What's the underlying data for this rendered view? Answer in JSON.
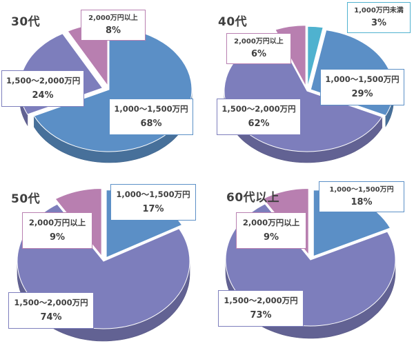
{
  "colors": {
    "c_1000_1500": "#5b8fc6",
    "c_1500_2000": "#7d7ebc",
    "c_over_2000": "#b87fb0",
    "c_under_1000": "#4fb2cf"
  },
  "chart_data": [
    {
      "type": "pie",
      "title": "30代",
      "slices": [
        {
          "category": "1,000～1,500万円",
          "value": 68,
          "label": "68%"
        },
        {
          "category": "1,500～2,000万円",
          "value": 24,
          "label": "24%"
        },
        {
          "category": "2,000万円以上",
          "value": 8,
          "label": "8%"
        }
      ]
    },
    {
      "type": "pie",
      "title": "40代",
      "slices": [
        {
          "category": "1,000万円未満",
          "value": 3,
          "label": "3%"
        },
        {
          "category": "1,000～1,500万円",
          "value": 29,
          "label": "29%"
        },
        {
          "category": "1,500～2,000万円",
          "value": 62,
          "label": "62%"
        },
        {
          "category": "2,000万円以上",
          "value": 6,
          "label": "6%"
        }
      ]
    },
    {
      "type": "pie",
      "title": "50代",
      "slices": [
        {
          "category": "1,000～1,500万円",
          "value": 17,
          "label": "17%"
        },
        {
          "category": "1,500～2,000万円",
          "value": 74,
          "label": "74%"
        },
        {
          "category": "2,000万円以上",
          "value": 9,
          "label": "9%"
        }
      ]
    },
    {
      "type": "pie",
      "title": "60代以上",
      "slices": [
        {
          "category": "1,000～1,500万円",
          "value": 18,
          "label": "18%"
        },
        {
          "category": "1,500～2,000万円",
          "value": 73,
          "label": "73%"
        },
        {
          "category": "2,000万円以上",
          "value": 9,
          "label": "9%"
        }
      ]
    }
  ]
}
